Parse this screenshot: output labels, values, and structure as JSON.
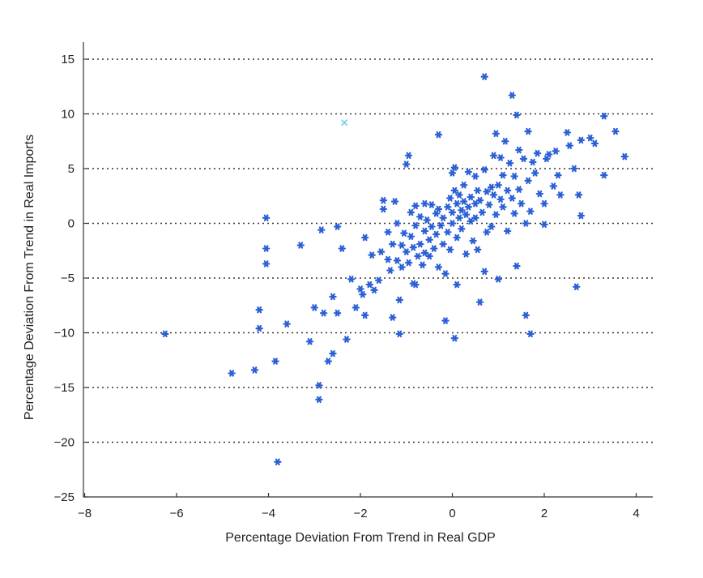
{
  "chart_data": {
    "type": "scatter",
    "title": "",
    "xlabel": "Percentage Deviation From Trend in Real GDP",
    "ylabel": "Percentage Deviation From Trend in Real Imports",
    "xlim": [
      -8,
      4.5
    ],
    "ylim": [
      -25,
      16.5
    ],
    "xticks": [
      -8,
      -6,
      -4,
      -2,
      0,
      2,
      4
    ],
    "yticks": [
      -25,
      -20,
      -15,
      -10,
      -5,
      0,
      5,
      10,
      15
    ],
    "xtick_labels": [
      "−8",
      "−6",
      "−4",
      "−2",
      "0",
      "2",
      "4"
    ],
    "ytick_labels": [
      "−25",
      "−20",
      "−15",
      "−10",
      "−5",
      "0",
      "5",
      "10",
      "15"
    ],
    "grid": "horizontal dotted",
    "marker_color": "#2a5fd6",
    "outlier_color": "#5fc8e8",
    "series": [
      {
        "marker": "asterisk",
        "points": [
          [
            -6.25,
            -10.1
          ],
          [
            -4.8,
            -13.7
          ],
          [
            -4.3,
            -13.4
          ],
          [
            -4.2,
            -7.9
          ],
          [
            -4.2,
            -9.6
          ],
          [
            -4.05,
            0.5
          ],
          [
            -4.05,
            -2.3
          ],
          [
            -4.05,
            -3.7
          ],
          [
            -3.85,
            -12.6
          ],
          [
            -3.8,
            -21.8
          ],
          [
            -3.6,
            -9.2
          ],
          [
            -3.3,
            -2.0
          ],
          [
            -3.1,
            -10.8
          ],
          [
            -3.0,
            -7.7
          ],
          [
            -2.9,
            -14.8
          ],
          [
            -2.9,
            -16.1
          ],
          [
            -2.85,
            -0.6
          ],
          [
            -2.8,
            -8.2
          ],
          [
            -2.7,
            -12.6
          ],
          [
            -2.6,
            -11.9
          ],
          [
            -2.6,
            -6.7
          ],
          [
            -2.5,
            -8.2
          ],
          [
            -2.5,
            -0.3
          ],
          [
            -2.4,
            -2.3
          ],
          [
            -2.3,
            -10.6
          ],
          [
            -2.2,
            -5.1
          ],
          [
            -2.1,
            -7.7
          ],
          [
            -2.0,
            -6.0
          ],
          [
            -1.95,
            -6.5
          ],
          [
            -1.9,
            -8.4
          ],
          [
            -1.9,
            -1.3
          ],
          [
            -1.8,
            -5.6
          ],
          [
            -1.75,
            -2.9
          ],
          [
            -1.7,
            -6.1
          ],
          [
            -1.6,
            -5.2
          ],
          [
            -1.55,
            -2.6
          ],
          [
            -1.5,
            2.1
          ],
          [
            -1.5,
            1.3
          ],
          [
            -1.4,
            -0.8
          ],
          [
            -1.4,
            -3.3
          ],
          [
            -1.35,
            -4.3
          ],
          [
            -1.3,
            -8.6
          ],
          [
            -1.3,
            -1.9
          ],
          [
            -1.25,
            2.0
          ],
          [
            -1.2,
            0.0
          ],
          [
            -1.2,
            -3.4
          ],
          [
            -1.15,
            -7.0
          ],
          [
            -1.15,
            -10.1
          ],
          [
            -1.1,
            -2.0
          ],
          [
            -1.1,
            -4.0
          ],
          [
            -1.05,
            -0.9
          ],
          [
            -1.0,
            5.4
          ],
          [
            -1.0,
            -2.6
          ],
          [
            -0.95,
            6.2
          ],
          [
            -0.95,
            -3.6
          ],
          [
            -0.9,
            1.0
          ],
          [
            -0.9,
            -1.2
          ],
          [
            -0.85,
            -5.5
          ],
          [
            -0.85,
            -2.2
          ],
          [
            -0.8,
            1.6
          ],
          [
            -0.8,
            -0.2
          ],
          [
            -0.8,
            -5.6
          ],
          [
            -0.75,
            -3.0
          ],
          [
            -0.7,
            0.6
          ],
          [
            -0.7,
            -1.9
          ],
          [
            -0.65,
            -3.8
          ],
          [
            -0.6,
            1.8
          ],
          [
            -0.6,
            -0.7
          ],
          [
            -0.6,
            -2.7
          ],
          [
            -0.55,
            0.3
          ],
          [
            -0.5,
            -1.5
          ],
          [
            -0.5,
            -3.0
          ],
          [
            -0.45,
            1.7
          ],
          [
            -0.45,
            -0.3
          ],
          [
            -0.4,
            -2.3
          ],
          [
            -0.35,
            0.9
          ],
          [
            -0.35,
            -1.0
          ],
          [
            -0.3,
            8.1
          ],
          [
            -0.3,
            1.3
          ],
          [
            -0.3,
            -4.0
          ],
          [
            -0.25,
            -0.2
          ],
          [
            -0.2,
            -1.9
          ],
          [
            -0.2,
            0.5
          ],
          [
            -0.15,
            -8.9
          ],
          [
            -0.15,
            -4.6
          ],
          [
            -0.1,
            1.5
          ],
          [
            -0.1,
            -0.8
          ],
          [
            -0.05,
            2.3
          ],
          [
            -0.05,
            -2.4
          ],
          [
            0.0,
            4.6
          ],
          [
            0.0,
            1.0
          ],
          [
            0.0,
            0.0
          ],
          [
            0.05,
            5.1
          ],
          [
            0.05,
            -10.5
          ],
          [
            0.05,
            3.0
          ],
          [
            0.1,
            1.8
          ],
          [
            0.1,
            -1.3
          ],
          [
            0.1,
            -5.6
          ],
          [
            0.15,
            2.6
          ],
          [
            0.15,
            0.5
          ],
          [
            0.2,
            1.2
          ],
          [
            0.2,
            -0.5
          ],
          [
            0.25,
            3.5
          ],
          [
            0.25,
            2.0
          ],
          [
            0.3,
            0.8
          ],
          [
            0.3,
            -2.8
          ],
          [
            0.35,
            1.5
          ],
          [
            0.35,
            4.7
          ],
          [
            0.4,
            2.4
          ],
          [
            0.4,
            0.2
          ],
          [
            0.45,
            -1.6
          ],
          [
            0.5,
            4.3
          ],
          [
            0.5,
            1.8
          ],
          [
            0.5,
            0.5
          ],
          [
            0.55,
            3.0
          ],
          [
            0.55,
            -2.4
          ],
          [
            0.6,
            2.1
          ],
          [
            0.6,
            -7.2
          ],
          [
            0.65,
            1.0
          ],
          [
            0.7,
            4.9
          ],
          [
            0.7,
            13.4
          ],
          [
            0.7,
            -4.4
          ],
          [
            0.75,
            2.9
          ],
          [
            0.75,
            -0.8
          ],
          [
            0.8,
            1.7
          ],
          [
            0.85,
            3.3
          ],
          [
            0.85,
            -0.3
          ],
          [
            0.9,
            6.2
          ],
          [
            0.9,
            2.6
          ],
          [
            0.95,
            8.2
          ],
          [
            0.95,
            0.8
          ],
          [
            1.0,
            3.5
          ],
          [
            1.0,
            -5.1
          ],
          [
            1.05,
            2.2
          ],
          [
            1.05,
            6.0
          ],
          [
            1.1,
            4.4
          ],
          [
            1.1,
            1.5
          ],
          [
            1.15,
            7.5
          ],
          [
            1.2,
            3.0
          ],
          [
            1.2,
            -0.7
          ],
          [
            1.25,
            5.5
          ],
          [
            1.3,
            2.3
          ],
          [
            1.3,
            11.7
          ],
          [
            1.35,
            4.3
          ],
          [
            1.35,
            0.9
          ],
          [
            1.4,
            9.9
          ],
          [
            1.4,
            -3.9
          ],
          [
            1.45,
            6.7
          ],
          [
            1.45,
            3.1
          ],
          [
            1.5,
            1.8
          ],
          [
            1.55,
            5.9
          ],
          [
            1.6,
            0.0
          ],
          [
            1.6,
            -8.4
          ],
          [
            1.65,
            8.4
          ],
          [
            1.65,
            3.9
          ],
          [
            1.7,
            1.1
          ],
          [
            1.7,
            -10.1
          ],
          [
            1.75,
            5.6
          ],
          [
            1.8,
            4.6
          ],
          [
            1.85,
            6.4
          ],
          [
            1.9,
            2.7
          ],
          [
            2.0,
            1.8
          ],
          [
            2.0,
            -0.1
          ],
          [
            2.05,
            5.9
          ],
          [
            2.1,
            6.3
          ],
          [
            2.2,
            3.4
          ],
          [
            2.25,
            6.6
          ],
          [
            2.3,
            4.4
          ],
          [
            2.35,
            2.6
          ],
          [
            2.5,
            8.3
          ],
          [
            2.55,
            7.1
          ],
          [
            2.65,
            5.0
          ],
          [
            2.7,
            -5.8
          ],
          [
            2.75,
            2.6
          ],
          [
            2.8,
            7.6
          ],
          [
            2.8,
            0.7
          ],
          [
            3.0,
            7.8
          ],
          [
            3.1,
            7.3
          ],
          [
            3.3,
            9.8
          ],
          [
            3.3,
            4.4
          ],
          [
            3.55,
            8.4
          ],
          [
            3.75,
            6.1
          ]
        ]
      },
      {
        "marker": "x",
        "points": [
          [
            -2.35,
            9.2
          ]
        ]
      }
    ]
  }
}
